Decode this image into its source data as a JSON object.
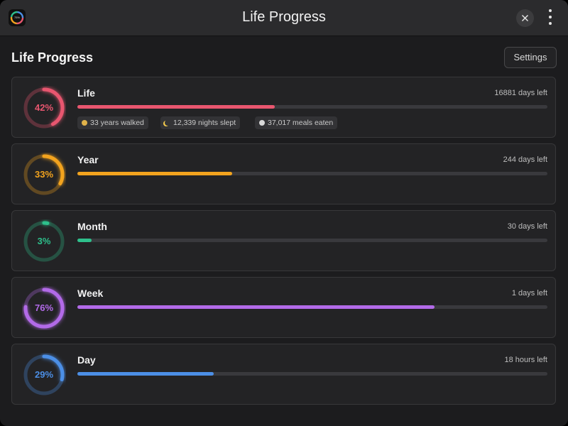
{
  "header": {
    "title": "Life Progress",
    "app_icon_label": "75%"
  },
  "section": {
    "title": "Life Progress",
    "settings_button": "Settings"
  },
  "items": [
    {
      "name": "Life",
      "percent": 42,
      "percent_label": "42%",
      "remaining": "16881 days left",
      "color": "#e8566f",
      "stats": [
        "33 years walked",
        "12,339 nights slept",
        "37,017 meals eaten"
      ]
    },
    {
      "name": "Year",
      "percent": 33,
      "percent_label": "33%",
      "remaining": "244 days left",
      "color": "#f2a31e"
    },
    {
      "name": "Month",
      "percent": 3,
      "percent_label": "3%",
      "remaining": "30 days left",
      "color": "#2ec08c"
    },
    {
      "name": "Week",
      "percent": 76,
      "percent_label": "76%",
      "remaining": "1 days left",
      "color": "#b26ae8"
    },
    {
      "name": "Day",
      "percent": 29,
      "percent_label": "29%",
      "remaining": "18 hours left",
      "color": "#4c8fe6"
    }
  ]
}
